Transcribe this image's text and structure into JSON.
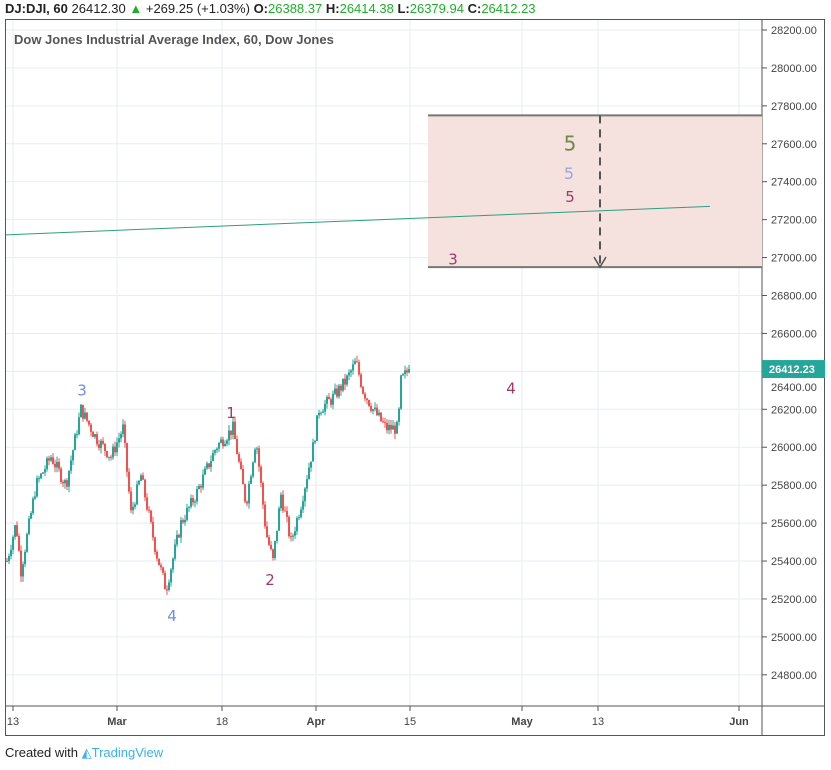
{
  "header": {
    "symbol": "DJ:DJI, 60",
    "last": "26412.30",
    "change": "+269.25 (+1.03%)",
    "o_label": "O:",
    "o": "26388.37",
    "h_label": "H:",
    "h": "26414.38",
    "l_label": "L:",
    "l": "26379.94",
    "c_label": "C:",
    "c": "26412.23"
  },
  "footer": {
    "created_with": "Created with",
    "brand": "TradingView"
  },
  "colors": {
    "up": "#26a69a",
    "down": "#ef5350",
    "box": "#f5e1de",
    "trend": "#2e9e7e",
    "tag": "#26a69a"
  },
  "chart_data": {
    "type": "candlestick",
    "title": "Dow Jones Industrial Average Index, 60, Dow Jones",
    "ylim": [
      24700,
      28250
    ],
    "yticks": [
      "28200.00",
      "28000.00",
      "27800.00",
      "27600.00",
      "27400.00",
      "27200.00",
      "27000.00",
      "26800.00",
      "26600.00",
      "26400.00",
      "26200.00",
      "26000.00",
      "25800.00",
      "25600.00",
      "25400.00",
      "25200.00",
      "25000.00",
      "24800.00"
    ],
    "xticks": [
      "13",
      "Mar",
      "18",
      "Apr",
      "15",
      "May",
      "13",
      "Jun"
    ],
    "last_price_label": "26412.23",
    "close_path": [
      [
        0,
        25400
      ],
      [
        9,
        25600
      ],
      [
        14,
        25350
      ],
      [
        29,
        25800
      ],
      [
        44,
        25950
      ],
      [
        59,
        25800
      ],
      [
        74,
        26200
      ],
      [
        89,
        26050
      ],
      [
        104,
        25950
      ],
      [
        116,
        26100
      ],
      [
        124,
        25650
      ],
      [
        134,
        25850
      ],
      [
        149,
        25450
      ],
      [
        159,
        25250
      ],
      [
        174,
        25600
      ],
      [
        189,
        25750
      ],
      [
        209,
        26000
      ],
      [
        226,
        26100
      ],
      [
        239,
        25700
      ],
      [
        249,
        26050
      ],
      [
        259,
        25550
      ],
      [
        266,
        25400
      ],
      [
        274,
        25750
      ],
      [
        284,
        25500
      ],
      [
        294,
        25700
      ],
      [
        306,
        26000
      ],
      [
        312,
        26200
      ],
      [
        324,
        26250
      ],
      [
        339,
        26350
      ],
      [
        349,
        26450
      ],
      [
        356,
        26300
      ],
      [
        366,
        26200
      ],
      [
        379,
        26100
      ],
      [
        391,
        26100
      ],
      [
        394,
        26350
      ],
      [
        402,
        26412
      ]
    ],
    "target_box": {
      "top": 27750,
      "bottom": 26950
    },
    "trendline": {
      "start": 27120,
      "end": 27270
    },
    "wave_labels": [
      {
        "text": "3",
        "price": 26300,
        "color": "#6c8fd9"
      },
      {
        "text": "4",
        "price": 25110,
        "color": "#6c8fd9"
      },
      {
        "text": "1",
        "price": 26180,
        "color": "#9c3b66"
      },
      {
        "text": "2",
        "price": 25300,
        "color": "#9c3b66"
      },
      {
        "text": "4",
        "price": 26310,
        "color": "#9c3b66"
      },
      {
        "text": "3",
        "price": 26990,
        "color": "#9c3b66"
      },
      {
        "text": "5",
        "price": 27590,
        "color": "#6d8a4a"
      },
      {
        "text": "5",
        "price": 27440,
        "color": "#9aa7dc"
      },
      {
        "text": "5",
        "price": 27320,
        "color": "#9c3b66"
      }
    ]
  }
}
